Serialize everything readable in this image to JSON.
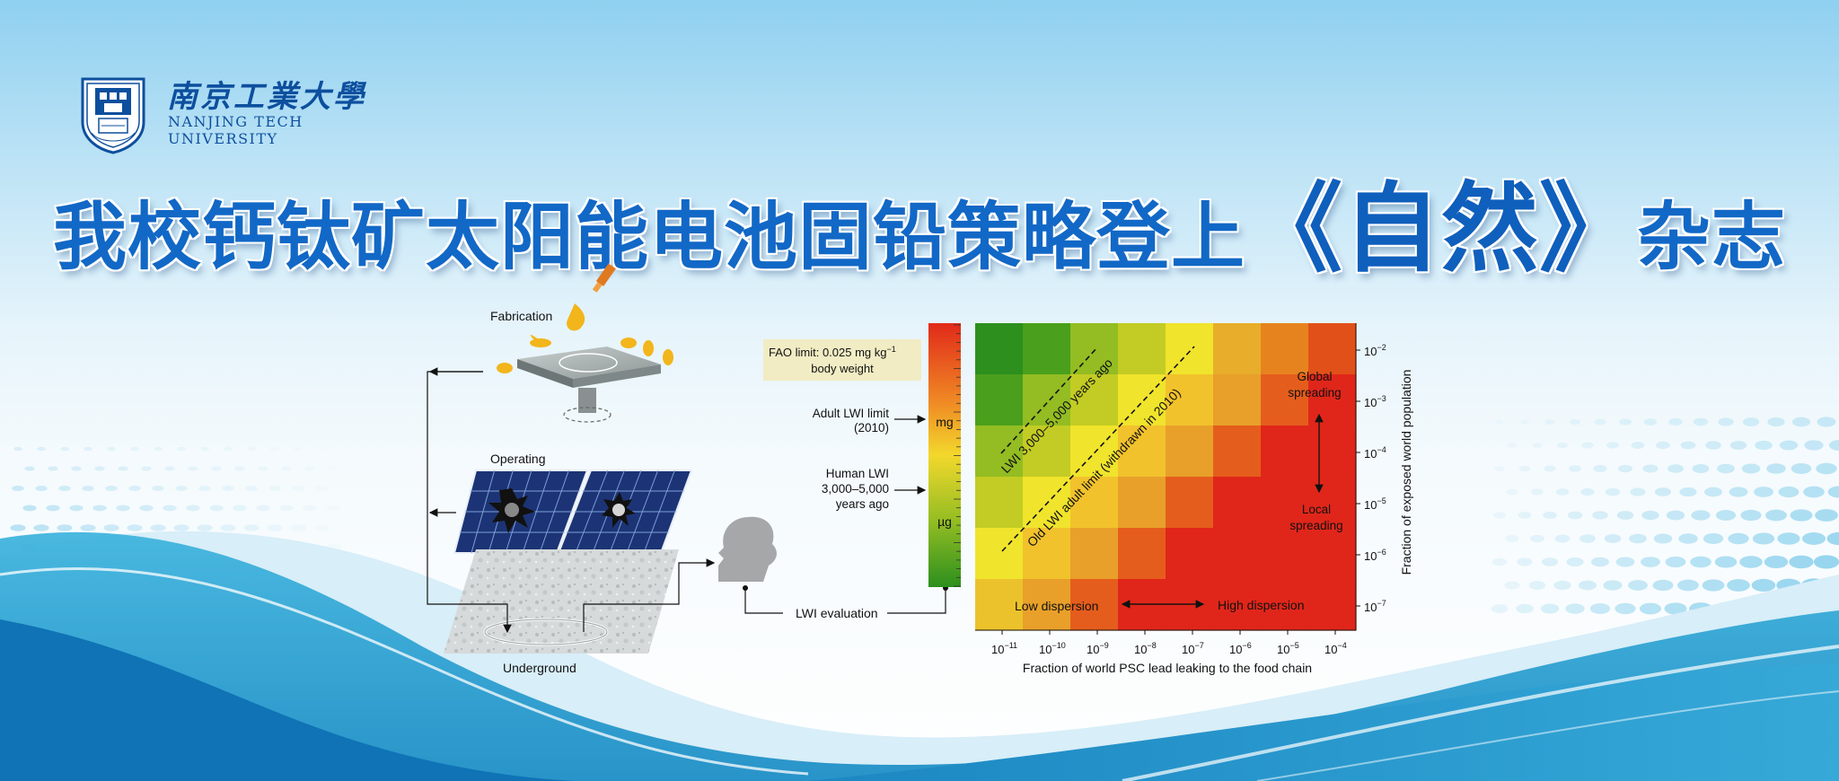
{
  "university": {
    "name_cn": "南京工業大學",
    "name_en_line1": "NANJING TECH",
    "name_en_line2": "UNIVERSITY",
    "seal_text": "NANJING TECH UNIVERSITY"
  },
  "headline": {
    "part1": "我校钙钛矿太阳能电池固铅策略登上",
    "journal": "《自然》",
    "part2": "杂志"
  },
  "figure": {
    "stages": {
      "fabrication": "Fabrication",
      "operating": "Operating",
      "underground": "Underground"
    },
    "fao_box": {
      "line1": "FAO limit: 0.025 mg kg",
      "sup": "−1",
      "line2": "body weight"
    },
    "adult_lwi": {
      "line1": "Adult LWI limit",
      "line2": "(2010)"
    },
    "human_lwi": {
      "line1": "Human LWI",
      "line2": "3,000–5,000",
      "line3": "years ago"
    },
    "lwi_evaluation": "LWI evaluation",
    "scale_labels": {
      "top": "mg",
      "bottom": "µg"
    },
    "heatmap": {
      "diag1": "LWI 3,000–5,000 years ago",
      "diag2": "Old LWI adult limit (withdrawn in 2010)",
      "global_spreading": {
        "line1": "Global",
        "line2": "spreading"
      },
      "local_spreading": {
        "line1": "Local",
        "line2": "spreading"
      },
      "low_dispersion": "Low dispersion",
      "high_dispersion": "High dispersion",
      "xlabel": "Fraction of world PSC lead leaking to the food chain",
      "ylabel": "Fraction of exposed world population",
      "x_ticks": [
        "10",
        "10",
        "10",
        "10",
        "10",
        "10",
        "10",
        "10"
      ],
      "x_tick_exponents": [
        "−11",
        "−10",
        "−9",
        "−8",
        "−7",
        "−6",
        "−5",
        "−4"
      ],
      "y_ticks": [
        "10",
        "10",
        "10",
        "10",
        "10",
        "10"
      ],
      "y_tick_exponents": [
        "−2",
        "−3",
        "−4",
        "−5",
        "−6",
        "−7"
      ],
      "grid_colors": [
        [
          "#2c8f1e",
          "#4a9f1c",
          "#93bd22",
          "#c3cc24",
          "#f0e42c",
          "#e8ad2a",
          "#e6831f",
          "#e2501a"
        ],
        [
          "#4a9f1c",
          "#93bd22",
          "#c3cc24",
          "#f0e42c",
          "#f2c22c",
          "#e8a02a",
          "#e55d1c",
          "#e0261a"
        ],
        [
          "#93bd22",
          "#c3cc24",
          "#f0e42c",
          "#f2c22c",
          "#e8a02a",
          "#e55d1c",
          "#e0261a",
          "#e0261a"
        ],
        [
          "#c3cc24",
          "#f0e42c",
          "#f2c22c",
          "#e8a02a",
          "#e55d1c",
          "#e0261a",
          "#e0261a",
          "#e0261a"
        ],
        [
          "#f0e42c",
          "#f2c22c",
          "#e8a02a",
          "#e55d1c",
          "#e0261a",
          "#e0261a",
          "#e0261a",
          "#e0261a"
        ],
        [
          "#ecc22c",
          "#e8a02a",
          "#e55d1c",
          "#e0261a",
          "#e0261a",
          "#e0261a",
          "#e0261a",
          "#e0261a"
        ]
      ]
    }
  },
  "colors": {
    "title_blue": "#1268c6",
    "logo_blue": "#0d4f9e",
    "wave_blue": "#2fa6d3",
    "fao_box_bg": "#f2ecc4"
  }
}
